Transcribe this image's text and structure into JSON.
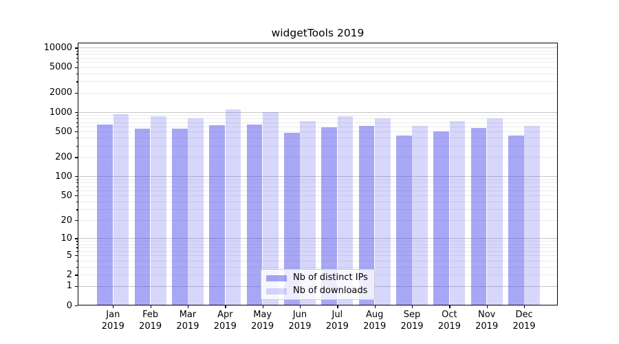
{
  "title": "widgetTools 2019",
  "legend": {
    "items": [
      {
        "label": "Nb of distinct IPs"
      },
      {
        "label": "Nb of downloads"
      }
    ]
  },
  "chart_data": {
    "type": "bar",
    "title": "widgetTools 2019",
    "year_label": "2019",
    "categories": [
      "Jan",
      "Feb",
      "Mar",
      "Apr",
      "May",
      "Jun",
      "Jul",
      "Aug",
      "Sep",
      "Oct",
      "Nov",
      "Dec"
    ],
    "series": [
      {
        "name": "Nb of distinct IPs",
        "color": "rgba(80,80,238,0.5)",
        "solid_color": "#a7a7f6",
        "values": [
          650,
          560,
          550,
          630,
          645,
          480,
          580,
          615,
          430,
          500,
          565,
          430
        ]
      },
      {
        "name": "Nb of downloads",
        "color": "rgba(80,80,238,0.23)",
        "solid_color": "#d6d6fa",
        "values": [
          930,
          855,
          810,
          1100,
          1000,
          720,
          855,
          800,
          615,
          720,
          810,
          605
        ]
      }
    ],
    "yscale": "log10(1+x)",
    "y_tick_values": [
      0,
      1,
      2,
      5,
      10,
      20,
      50,
      100,
      200,
      500,
      1000,
      2000,
      5000,
      10000
    ],
    "ylim": [
      0,
      12000
    ],
    "xlabel": "",
    "ylabel": "",
    "grid": {
      "major_color": "#c6c6c6",
      "minor_color": "#ebebeb",
      "major_at": "powers of 10",
      "minor_at": "2-9 per decade"
    },
    "legend_position": "lower center inside",
    "axis_color": "#000000",
    "background": "#ffffff"
  }
}
